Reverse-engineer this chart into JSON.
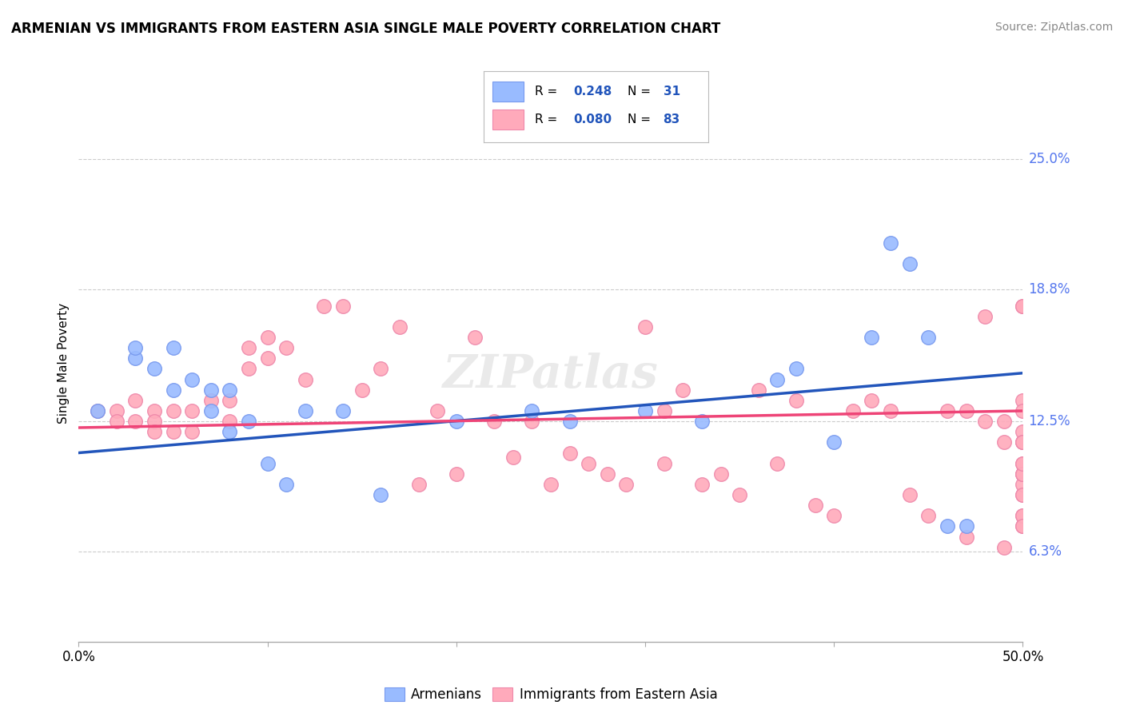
{
  "title": "ARMENIAN VS IMMIGRANTS FROM EASTERN ASIA SINGLE MALE POVERTY CORRELATION CHART",
  "source": "Source: ZipAtlas.com",
  "ylabel": "Single Male Poverty",
  "xlim": [
    0.0,
    0.5
  ],
  "ylim": [
    0.02,
    0.285
  ],
  "xticks": [
    0.0,
    0.1,
    0.2,
    0.3,
    0.4,
    0.5
  ],
  "xtick_labels": [
    "0.0%",
    "",
    "",
    "",
    "",
    "50.0%"
  ],
  "ytick_positions": [
    0.063,
    0.125,
    0.188,
    0.25
  ],
  "ytick_labels": [
    "6.3%",
    "12.5%",
    "18.8%",
    "25.0%"
  ],
  "background_color": "#ffffff",
  "grid_color": "#cccccc",
  "blue_color": "#99bbff",
  "pink_color": "#ffaabb",
  "blue_edge_color": "#7799ee",
  "pink_edge_color": "#ee88aa",
  "blue_line_color": "#2255bb",
  "pink_line_color": "#ee4477",
  "legend_label_blue": "Armenians",
  "legend_label_pink": "Immigrants from Eastern Asia",
  "blue_scatter_x": [
    0.01,
    0.03,
    0.03,
    0.04,
    0.05,
    0.05,
    0.06,
    0.07,
    0.07,
    0.08,
    0.08,
    0.09,
    0.1,
    0.11,
    0.12,
    0.14,
    0.16,
    0.2,
    0.24,
    0.26,
    0.3,
    0.33,
    0.37,
    0.38,
    0.4,
    0.42,
    0.43,
    0.44,
    0.45,
    0.46,
    0.47
  ],
  "blue_scatter_y": [
    0.13,
    0.155,
    0.16,
    0.15,
    0.14,
    0.16,
    0.145,
    0.13,
    0.14,
    0.12,
    0.14,
    0.125,
    0.105,
    0.095,
    0.13,
    0.13,
    0.09,
    0.125,
    0.13,
    0.125,
    0.13,
    0.125,
    0.145,
    0.15,
    0.115,
    0.165,
    0.21,
    0.2,
    0.165,
    0.075,
    0.075
  ],
  "pink_scatter_x": [
    0.01,
    0.02,
    0.02,
    0.03,
    0.03,
    0.04,
    0.04,
    0.04,
    0.05,
    0.05,
    0.06,
    0.06,
    0.07,
    0.08,
    0.08,
    0.09,
    0.09,
    0.1,
    0.1,
    0.11,
    0.12,
    0.13,
    0.14,
    0.15,
    0.16,
    0.17,
    0.18,
    0.19,
    0.2,
    0.21,
    0.22,
    0.23,
    0.24,
    0.25,
    0.26,
    0.27,
    0.28,
    0.29,
    0.3,
    0.31,
    0.31,
    0.32,
    0.33,
    0.34,
    0.35,
    0.36,
    0.37,
    0.38,
    0.39,
    0.4,
    0.41,
    0.42,
    0.43,
    0.44,
    0.45,
    0.46,
    0.47,
    0.47,
    0.48,
    0.48,
    0.49,
    0.49,
    0.49,
    0.5,
    0.5,
    0.5,
    0.5,
    0.5,
    0.5,
    0.5,
    0.5,
    0.5,
    0.5,
    0.5,
    0.5,
    0.5,
    0.5,
    0.5,
    0.5,
    0.5,
    0.5,
    0.5,
    0.5
  ],
  "pink_scatter_y": [
    0.13,
    0.13,
    0.125,
    0.135,
    0.125,
    0.13,
    0.125,
    0.12,
    0.13,
    0.12,
    0.13,
    0.12,
    0.135,
    0.135,
    0.125,
    0.16,
    0.15,
    0.165,
    0.155,
    0.16,
    0.145,
    0.18,
    0.18,
    0.14,
    0.15,
    0.17,
    0.095,
    0.13,
    0.1,
    0.165,
    0.125,
    0.108,
    0.125,
    0.095,
    0.11,
    0.105,
    0.1,
    0.095,
    0.17,
    0.13,
    0.105,
    0.14,
    0.095,
    0.1,
    0.09,
    0.14,
    0.105,
    0.135,
    0.085,
    0.08,
    0.13,
    0.135,
    0.13,
    0.09,
    0.08,
    0.13,
    0.07,
    0.13,
    0.175,
    0.125,
    0.065,
    0.125,
    0.115,
    0.09,
    0.08,
    0.075,
    0.115,
    0.095,
    0.1,
    0.105,
    0.18,
    0.135,
    0.13,
    0.12,
    0.115,
    0.09,
    0.08,
    0.075,
    0.115,
    0.1,
    0.1,
    0.105,
    0.18
  ],
  "blue_trend_y_start": 0.11,
  "blue_trend_y_end": 0.148,
  "pink_trend_y_start": 0.122,
  "pink_trend_y_end": 0.13
}
